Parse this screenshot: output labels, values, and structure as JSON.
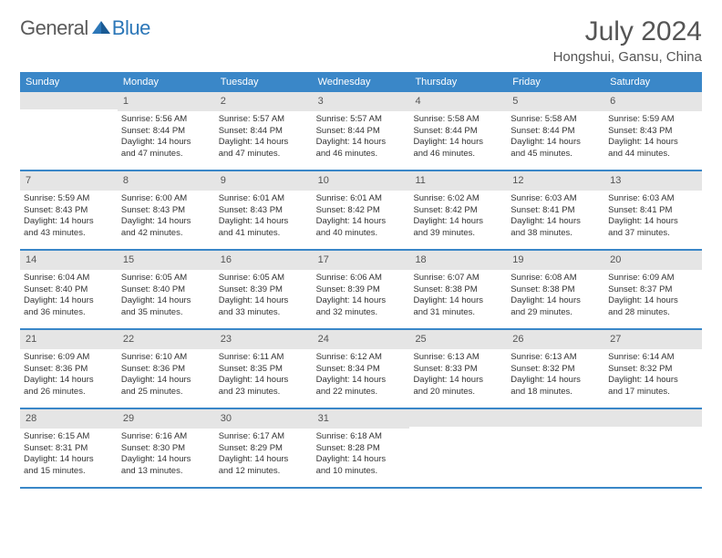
{
  "logo": {
    "text1": "General",
    "text2": "Blue"
  },
  "title": "July 2024",
  "location": "Hongshui, Gansu, China",
  "colors": {
    "header_bg": "#3a87c8",
    "header_text": "#ffffff",
    "daynum_bg": "#e5e5e5",
    "week_border": "#3a87c8",
    "logo_gray": "#5a5a5a",
    "logo_blue": "#2c77b8"
  },
  "weekdays": [
    "Sunday",
    "Monday",
    "Tuesday",
    "Wednesday",
    "Thursday",
    "Friday",
    "Saturday"
  ],
  "weeks": [
    [
      {
        "n": "",
        "sunrise": "",
        "sunset": "",
        "daylight1": "",
        "daylight2": ""
      },
      {
        "n": "1",
        "sunrise": "Sunrise: 5:56 AM",
        "sunset": "Sunset: 8:44 PM",
        "daylight1": "Daylight: 14 hours",
        "daylight2": "and 47 minutes."
      },
      {
        "n": "2",
        "sunrise": "Sunrise: 5:57 AM",
        "sunset": "Sunset: 8:44 PM",
        "daylight1": "Daylight: 14 hours",
        "daylight2": "and 47 minutes."
      },
      {
        "n": "3",
        "sunrise": "Sunrise: 5:57 AM",
        "sunset": "Sunset: 8:44 PM",
        "daylight1": "Daylight: 14 hours",
        "daylight2": "and 46 minutes."
      },
      {
        "n": "4",
        "sunrise": "Sunrise: 5:58 AM",
        "sunset": "Sunset: 8:44 PM",
        "daylight1": "Daylight: 14 hours",
        "daylight2": "and 46 minutes."
      },
      {
        "n": "5",
        "sunrise": "Sunrise: 5:58 AM",
        "sunset": "Sunset: 8:44 PM",
        "daylight1": "Daylight: 14 hours",
        "daylight2": "and 45 minutes."
      },
      {
        "n": "6",
        "sunrise": "Sunrise: 5:59 AM",
        "sunset": "Sunset: 8:43 PM",
        "daylight1": "Daylight: 14 hours",
        "daylight2": "and 44 minutes."
      }
    ],
    [
      {
        "n": "7",
        "sunrise": "Sunrise: 5:59 AM",
        "sunset": "Sunset: 8:43 PM",
        "daylight1": "Daylight: 14 hours",
        "daylight2": "and 43 minutes."
      },
      {
        "n": "8",
        "sunrise": "Sunrise: 6:00 AM",
        "sunset": "Sunset: 8:43 PM",
        "daylight1": "Daylight: 14 hours",
        "daylight2": "and 42 minutes."
      },
      {
        "n": "9",
        "sunrise": "Sunrise: 6:01 AM",
        "sunset": "Sunset: 8:43 PM",
        "daylight1": "Daylight: 14 hours",
        "daylight2": "and 41 minutes."
      },
      {
        "n": "10",
        "sunrise": "Sunrise: 6:01 AM",
        "sunset": "Sunset: 8:42 PM",
        "daylight1": "Daylight: 14 hours",
        "daylight2": "and 40 minutes."
      },
      {
        "n": "11",
        "sunrise": "Sunrise: 6:02 AM",
        "sunset": "Sunset: 8:42 PM",
        "daylight1": "Daylight: 14 hours",
        "daylight2": "and 39 minutes."
      },
      {
        "n": "12",
        "sunrise": "Sunrise: 6:03 AM",
        "sunset": "Sunset: 8:41 PM",
        "daylight1": "Daylight: 14 hours",
        "daylight2": "and 38 minutes."
      },
      {
        "n": "13",
        "sunrise": "Sunrise: 6:03 AM",
        "sunset": "Sunset: 8:41 PM",
        "daylight1": "Daylight: 14 hours",
        "daylight2": "and 37 minutes."
      }
    ],
    [
      {
        "n": "14",
        "sunrise": "Sunrise: 6:04 AM",
        "sunset": "Sunset: 8:40 PM",
        "daylight1": "Daylight: 14 hours",
        "daylight2": "and 36 minutes."
      },
      {
        "n": "15",
        "sunrise": "Sunrise: 6:05 AM",
        "sunset": "Sunset: 8:40 PM",
        "daylight1": "Daylight: 14 hours",
        "daylight2": "and 35 minutes."
      },
      {
        "n": "16",
        "sunrise": "Sunrise: 6:05 AM",
        "sunset": "Sunset: 8:39 PM",
        "daylight1": "Daylight: 14 hours",
        "daylight2": "and 33 minutes."
      },
      {
        "n": "17",
        "sunrise": "Sunrise: 6:06 AM",
        "sunset": "Sunset: 8:39 PM",
        "daylight1": "Daylight: 14 hours",
        "daylight2": "and 32 minutes."
      },
      {
        "n": "18",
        "sunrise": "Sunrise: 6:07 AM",
        "sunset": "Sunset: 8:38 PM",
        "daylight1": "Daylight: 14 hours",
        "daylight2": "and 31 minutes."
      },
      {
        "n": "19",
        "sunrise": "Sunrise: 6:08 AM",
        "sunset": "Sunset: 8:38 PM",
        "daylight1": "Daylight: 14 hours",
        "daylight2": "and 29 minutes."
      },
      {
        "n": "20",
        "sunrise": "Sunrise: 6:09 AM",
        "sunset": "Sunset: 8:37 PM",
        "daylight1": "Daylight: 14 hours",
        "daylight2": "and 28 minutes."
      }
    ],
    [
      {
        "n": "21",
        "sunrise": "Sunrise: 6:09 AM",
        "sunset": "Sunset: 8:36 PM",
        "daylight1": "Daylight: 14 hours",
        "daylight2": "and 26 minutes."
      },
      {
        "n": "22",
        "sunrise": "Sunrise: 6:10 AM",
        "sunset": "Sunset: 8:36 PM",
        "daylight1": "Daylight: 14 hours",
        "daylight2": "and 25 minutes."
      },
      {
        "n": "23",
        "sunrise": "Sunrise: 6:11 AM",
        "sunset": "Sunset: 8:35 PM",
        "daylight1": "Daylight: 14 hours",
        "daylight2": "and 23 minutes."
      },
      {
        "n": "24",
        "sunrise": "Sunrise: 6:12 AM",
        "sunset": "Sunset: 8:34 PM",
        "daylight1": "Daylight: 14 hours",
        "daylight2": "and 22 minutes."
      },
      {
        "n": "25",
        "sunrise": "Sunrise: 6:13 AM",
        "sunset": "Sunset: 8:33 PM",
        "daylight1": "Daylight: 14 hours",
        "daylight2": "and 20 minutes."
      },
      {
        "n": "26",
        "sunrise": "Sunrise: 6:13 AM",
        "sunset": "Sunset: 8:32 PM",
        "daylight1": "Daylight: 14 hours",
        "daylight2": "and 18 minutes."
      },
      {
        "n": "27",
        "sunrise": "Sunrise: 6:14 AM",
        "sunset": "Sunset: 8:32 PM",
        "daylight1": "Daylight: 14 hours",
        "daylight2": "and 17 minutes."
      }
    ],
    [
      {
        "n": "28",
        "sunrise": "Sunrise: 6:15 AM",
        "sunset": "Sunset: 8:31 PM",
        "daylight1": "Daylight: 14 hours",
        "daylight2": "and 15 minutes."
      },
      {
        "n": "29",
        "sunrise": "Sunrise: 6:16 AM",
        "sunset": "Sunset: 8:30 PM",
        "daylight1": "Daylight: 14 hours",
        "daylight2": "and 13 minutes."
      },
      {
        "n": "30",
        "sunrise": "Sunrise: 6:17 AM",
        "sunset": "Sunset: 8:29 PM",
        "daylight1": "Daylight: 14 hours",
        "daylight2": "and 12 minutes."
      },
      {
        "n": "31",
        "sunrise": "Sunrise: 6:18 AM",
        "sunset": "Sunset: 8:28 PM",
        "daylight1": "Daylight: 14 hours",
        "daylight2": "and 10 minutes."
      },
      {
        "n": "",
        "sunrise": "",
        "sunset": "",
        "daylight1": "",
        "daylight2": ""
      },
      {
        "n": "",
        "sunrise": "",
        "sunset": "",
        "daylight1": "",
        "daylight2": ""
      },
      {
        "n": "",
        "sunrise": "",
        "sunset": "",
        "daylight1": "",
        "daylight2": ""
      }
    ]
  ]
}
